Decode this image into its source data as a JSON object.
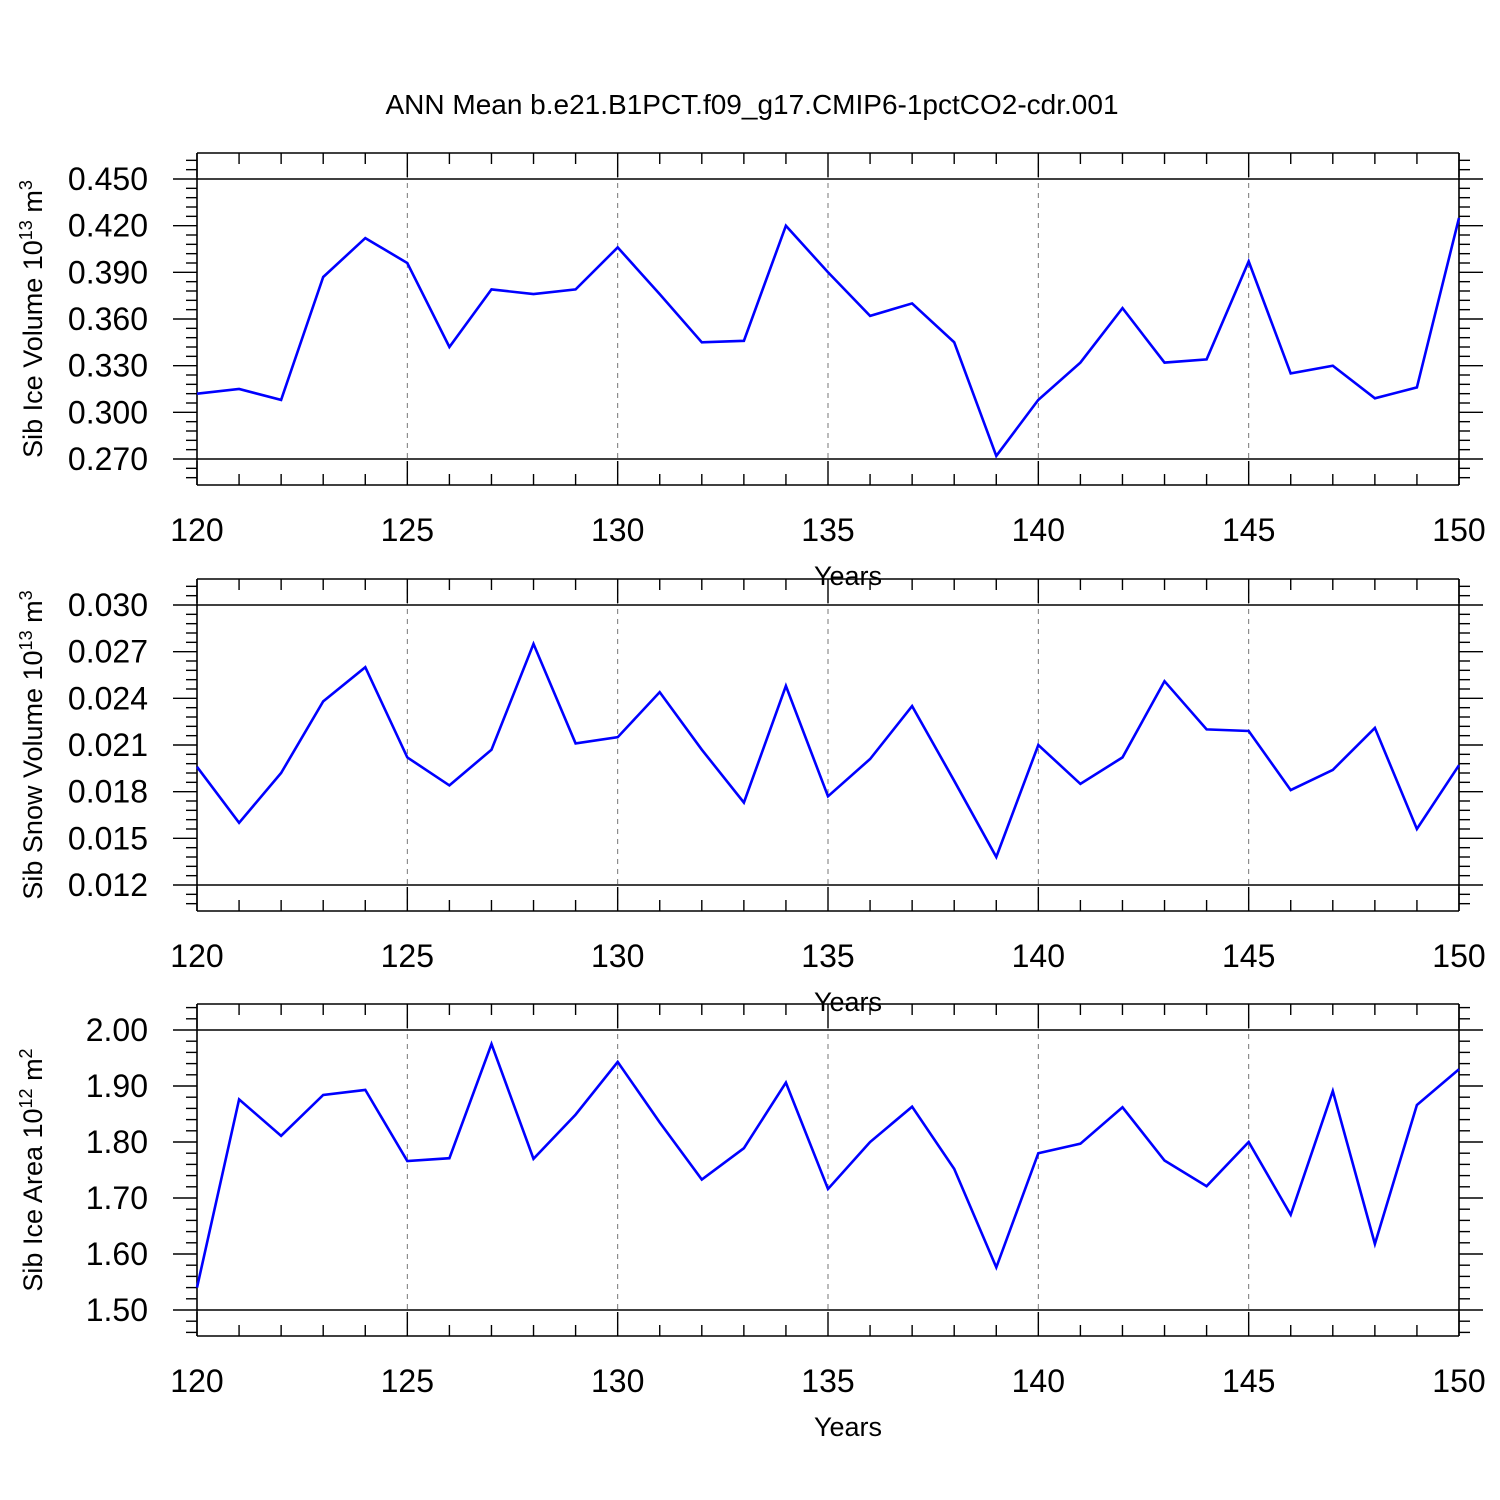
{
  "title": "ANN Mean b.e21.B1PCT.f09_g17.CMIP6-1pctCO2-cdr.001",
  "colors": {
    "series": "#0000ff",
    "axes": "#000000",
    "grid": "#777777"
  },
  "chart_data": [
    {
      "type": "line",
      "ylabel": {
        "main": "Sib Ice Volume 10",
        "exp": "13",
        "unit": " m",
        "unit_exp": "3"
      },
      "xlabel": "Years",
      "xlim": [
        120,
        150
      ],
      "ylim": [
        0.27,
        0.45
      ],
      "yticks": [
        "0.270",
        "0.300",
        "0.330",
        "0.360",
        "0.390",
        "0.420",
        "0.450"
      ],
      "xticks": [
        "120",
        "125",
        "130",
        "135",
        "140",
        "145",
        "150"
      ],
      "grid": "vertical dashed at labeled x ticks",
      "x": [
        120,
        121,
        122,
        123,
        124,
        125,
        126,
        127,
        128,
        129,
        130,
        131,
        132,
        133,
        134,
        135,
        136,
        137,
        138,
        139,
        140,
        141,
        142,
        143,
        144,
        145,
        146,
        147,
        148,
        149,
        150
      ],
      "values": [
        0.312,
        0.315,
        0.308,
        0.387,
        0.412,
        0.396,
        0.342,
        0.379,
        0.376,
        0.379,
        0.406,
        0.376,
        0.345,
        0.346,
        0.42,
        0.39,
        0.362,
        0.37,
        0.345,
        0.272,
        0.308,
        0.332,
        0.367,
        0.332,
        0.334,
        0.397,
        0.325,
        0.33,
        0.309,
        0.316,
        0.425
      ]
    },
    {
      "type": "line",
      "ylabel": {
        "main": "Sib Snow Volume 10",
        "exp": "13",
        "unit": " m",
        "unit_exp": "3"
      },
      "xlabel": "Years",
      "xlim": [
        120,
        150
      ],
      "ylim": [
        0.012,
        0.03
      ],
      "yticks": [
        "0.012",
        "0.015",
        "0.018",
        "0.021",
        "0.024",
        "0.027",
        "0.030"
      ],
      "xticks": [
        "120",
        "125",
        "130",
        "135",
        "140",
        "145",
        "150"
      ],
      "grid": "vertical dashed at labeled x ticks",
      "x": [
        120,
        121,
        122,
        123,
        124,
        125,
        126,
        127,
        128,
        129,
        130,
        131,
        132,
        133,
        134,
        135,
        136,
        137,
        138,
        139,
        140,
        141,
        142,
        143,
        144,
        145,
        146,
        147,
        148,
        149,
        150
      ],
      "values": [
        0.0196,
        0.016,
        0.0192,
        0.0238,
        0.026,
        0.0202,
        0.0184,
        0.0207,
        0.0275,
        0.0211,
        0.0215,
        0.0244,
        0.0207,
        0.0173,
        0.0248,
        0.0177,
        0.0201,
        0.0235,
        0.0187,
        0.0138,
        0.021,
        0.0185,
        0.0202,
        0.0251,
        0.022,
        0.0219,
        0.0181,
        0.0194,
        0.0221,
        0.0156,
        0.0197
      ]
    },
    {
      "type": "line",
      "ylabel": {
        "main": "Sib Ice Area 10",
        "exp": "12",
        "unit": " m",
        "unit_exp": "2"
      },
      "xlabel": "Years",
      "xlim": [
        120,
        150
      ],
      "ylim": [
        1.5,
        2.0
      ],
      "yticks": [
        "1.50",
        "1.60",
        "1.70",
        "1.80",
        "1.90",
        "2.00"
      ],
      "xticks": [
        "120",
        "125",
        "130",
        "135",
        "140",
        "145",
        "150"
      ],
      "grid": "vertical dashed at labeled x ticks",
      "x": [
        120,
        121,
        122,
        123,
        124,
        125,
        126,
        127,
        128,
        129,
        130,
        131,
        132,
        133,
        134,
        135,
        136,
        137,
        138,
        139,
        140,
        141,
        142,
        143,
        144,
        145,
        146,
        147,
        148,
        149,
        150
      ],
      "values": [
        1.54,
        1.876,
        1.811,
        1.884,
        1.893,
        1.766,
        1.771,
        1.975,
        1.77,
        1.849,
        1.943,
        1.835,
        1.733,
        1.789,
        1.906,
        1.716,
        1.8,
        1.863,
        1.752,
        1.576,
        1.78,
        1.797,
        1.862,
        1.767,
        1.721,
        1.8,
        1.67,
        1.891,
        1.618,
        1.866,
        1.93
      ]
    }
  ]
}
